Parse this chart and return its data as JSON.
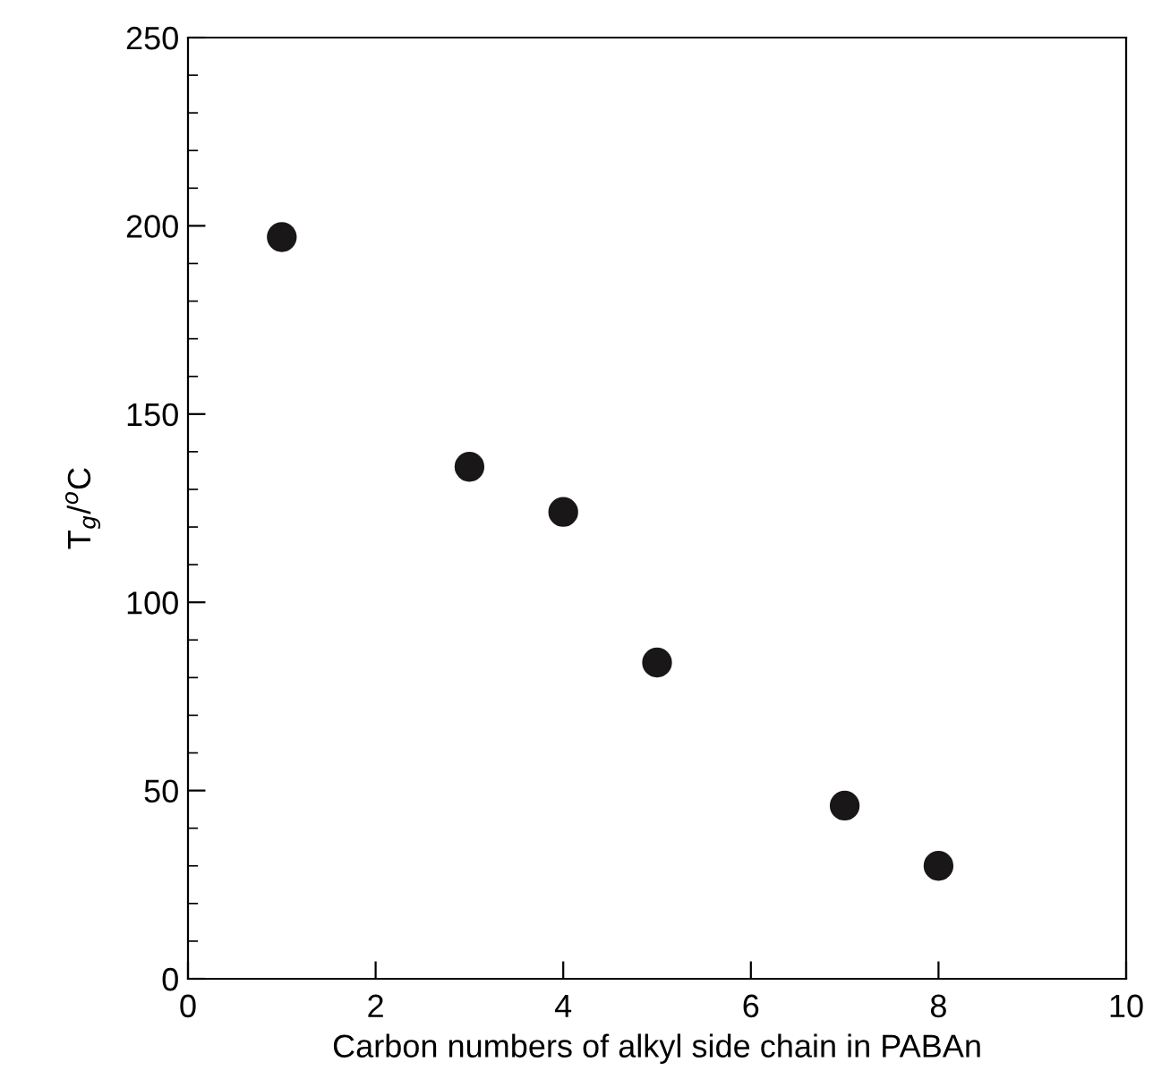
{
  "chart_data": {
    "type": "scatter",
    "xlabel": "Carbon numbers of alkyl side chain in PABAn",
    "ylabel": "T$_{g}$/$^{o}$C",
    "x": [
      1,
      3,
      4,
      5,
      7,
      8
    ],
    "series": [
      {
        "color": "#1a1718",
        "values": [
          197,
          136,
          124,
          84,
          46,
          30
        ]
      }
    ],
    "xlim": [
      0,
      10
    ],
    "ylim": [
      0,
      250
    ],
    "xticks": [
      0,
      2,
      4,
      6,
      8,
      10
    ],
    "yticks": [
      0,
      50,
      100,
      150,
      200,
      250
    ],
    "marker": "circle",
    "grid": false,
    "legend": false
  }
}
